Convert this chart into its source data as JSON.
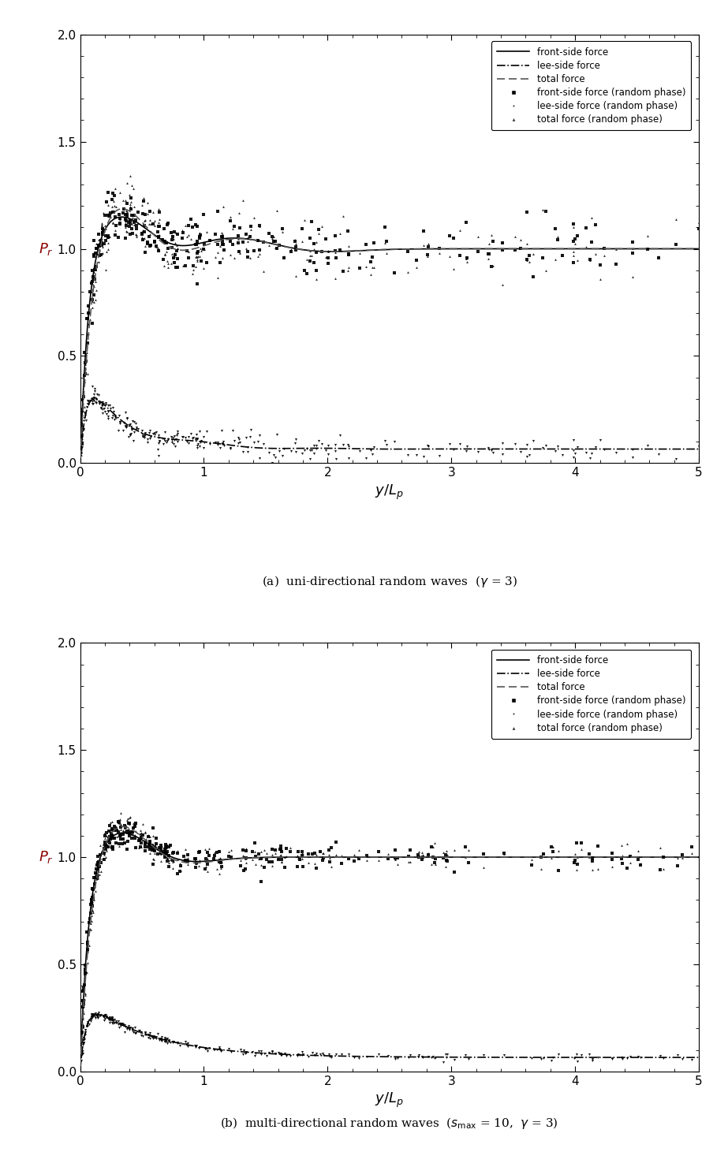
{
  "fig_width": 9.23,
  "fig_height": 14.61,
  "dpi": 100,
  "background_color": "#ffffff",
  "panel_a": {
    "xlim": [
      0,
      5.0
    ],
    "ylim": [
      0.0,
      2.0
    ],
    "xticks": [
      0.0,
      1.0,
      2.0,
      3.0,
      4.0,
      5.0
    ],
    "yticks": [
      0.0,
      0.5,
      1.0,
      1.5,
      2.0
    ]
  },
  "panel_b": {
    "xlim": [
      0,
      5.0
    ],
    "ylim": [
      0.0,
      2.0
    ],
    "xticks": [
      0.0,
      1.0,
      2.0,
      3.0,
      4.0,
      5.0
    ],
    "yticks": [
      0.0,
      0.5,
      1.0,
      1.5,
      2.0
    ]
  },
  "caption_a": "(a)  uni-directional random waves  (γ = 3)",
  "caption_b": "(b)  multi-directional random waves  (s",
  "caption_b2": " = 10,  γ = 3)",
  "line_color_front": "#000000",
  "line_color_lee": "#000000",
  "line_color_total": "#555555",
  "scatter_color": "#000000",
  "legend_labels": [
    "front-side force",
    "lee-side force",
    "total force",
    "front-side force (random phase)",
    "lee-side force (random phase)",
    "total force (random phase)"
  ]
}
